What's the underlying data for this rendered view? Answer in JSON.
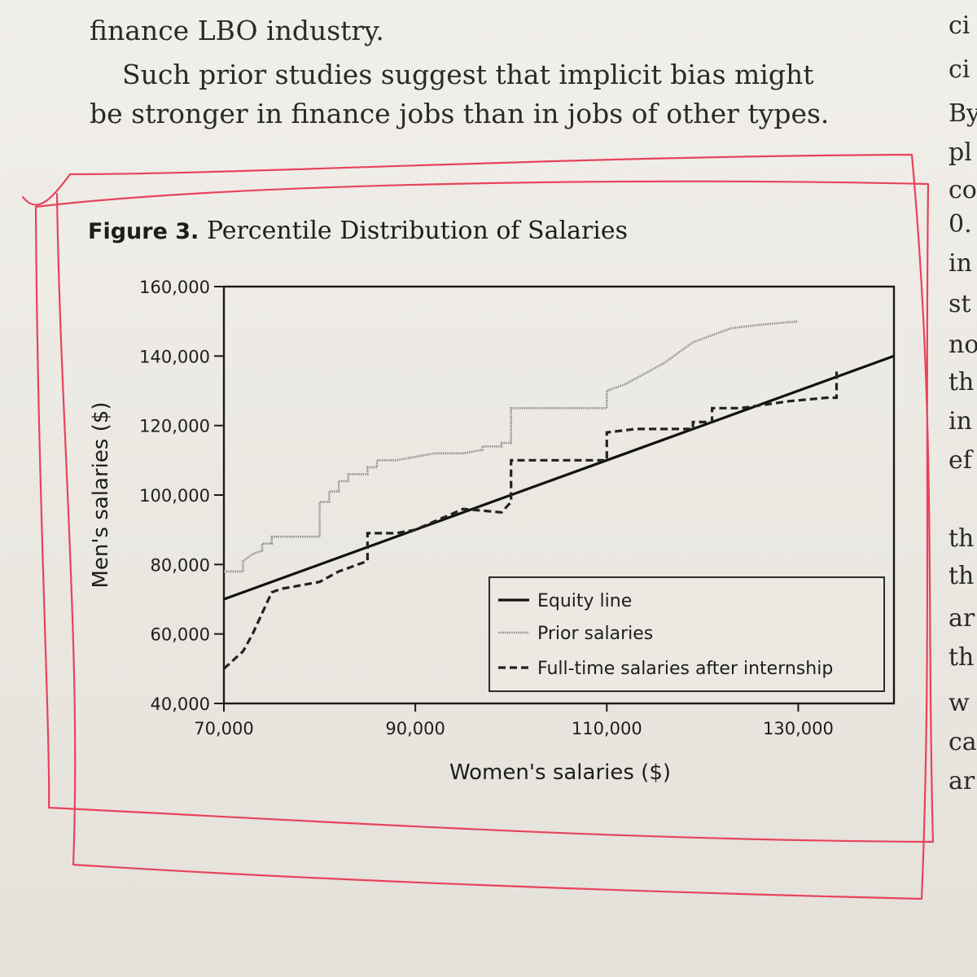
{
  "prose": {
    "line1": "finance LBO industry.",
    "line2": "Such prior studies suggest that implicit bias might",
    "line3": "be stronger in finance jobs than in jobs of other types."
  },
  "right_column": [
    "ci",
    "ci",
    "By",
    "pl",
    "co",
    "0.",
    "in",
    "st",
    "no",
    "th",
    "in",
    "ef",
    "th",
    "th",
    "ar",
    "th",
    "w",
    "ca",
    "ar"
  ],
  "figure": {
    "number": "Figure 3.",
    "title": "Percentile Distribution of Salaries"
  },
  "annotation": {
    "color": "#e8435c",
    "shape": "hand-drawn-rectangle"
  },
  "chart_data": {
    "type": "line",
    "xlabel": "Women's salaries ($)",
    "ylabel": "Men's salaries ($)",
    "xlim": [
      70000,
      140000
    ],
    "ylim": [
      40000,
      160000
    ],
    "x_ticks": [
      70000,
      90000,
      110000,
      130000
    ],
    "x_tick_labels": [
      "70,000",
      "90,000",
      "110,000",
      "130,000"
    ],
    "y_ticks": [
      40000,
      60000,
      80000,
      100000,
      120000,
      140000,
      160000
    ],
    "y_tick_labels": [
      "40,000",
      "60,000",
      "80,000",
      "100,000",
      "120,000",
      "140,000",
      "160,000"
    ],
    "grid": false,
    "legend_position": "bottom-right",
    "series": [
      {
        "name": "Equity line",
        "style": "solid",
        "color": "#111111",
        "x": [
          70000,
          140000
        ],
        "y": [
          70000,
          140000
        ]
      },
      {
        "name": "Prior salaries",
        "style": "gray",
        "color": "#8c8c8c",
        "x": [
          70000,
          72000,
          72000,
          73000,
          74000,
          74000,
          75000,
          75000,
          77000,
          80000,
          80000,
          81000,
          81000,
          82000,
          82000,
          83000,
          83000,
          85000,
          85000,
          86000,
          86000,
          88000,
          90000,
          92000,
          95000,
          97000,
          97000,
          99000,
          99000,
          100000,
          100000,
          103000,
          105000,
          110000,
          110000,
          112000,
          116000,
          119000,
          121000,
          123000,
          126000,
          130000
        ],
        "y": [
          78000,
          78000,
          81000,
          83000,
          84000,
          86000,
          86000,
          88000,
          88000,
          88000,
          98000,
          98000,
          101000,
          101000,
          104000,
          104000,
          106000,
          106000,
          108000,
          108000,
          110000,
          110000,
          111000,
          112000,
          112000,
          113000,
          114000,
          114000,
          115000,
          115000,
          125000,
          125000,
          125000,
          125000,
          130000,
          132000,
          138000,
          144000,
          146000,
          148000,
          149000,
          150000
        ]
      },
      {
        "name": "Full-time salaries after internship",
        "style": "dashed",
        "color": "#222222",
        "x": [
          70000,
          72000,
          73000,
          74000,
          75000,
          76000,
          80000,
          82000,
          85000,
          85000,
          88000,
          90000,
          95000,
          99000,
          100000,
          100000,
          104000,
          108000,
          110000,
          110000,
          113000,
          116000,
          118000,
          119000,
          119000,
          121000,
          121000,
          124000,
          129000,
          133000,
          134000,
          134000
        ],
        "y": [
          50000,
          55000,
          60000,
          66000,
          72000,
          73000,
          75000,
          78000,
          81000,
          89000,
          89000,
          90000,
          96000,
          95000,
          98000,
          110000,
          110000,
          110000,
          110000,
          118000,
          119000,
          119000,
          119000,
          119000,
          121000,
          121000,
          125000,
          125000,
          127000,
          128000,
          128000,
          136000
        ]
      }
    ]
  }
}
